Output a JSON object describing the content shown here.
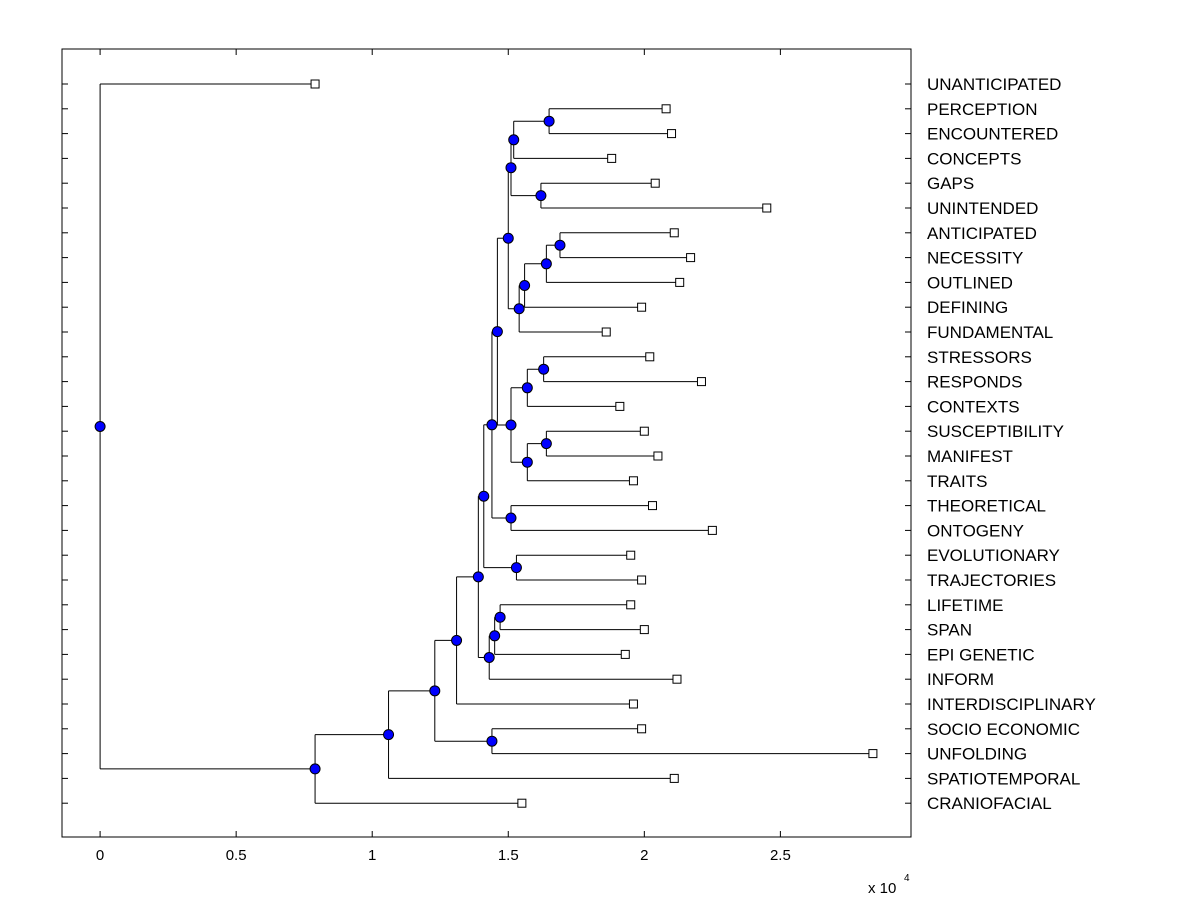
{
  "chart_data": {
    "type": "dendrogram",
    "title": "",
    "xlabel": "",
    "ylabel": "",
    "x_multiplier": "x 10",
    "x_exponent": "4",
    "xlim": [
      -0.14,
      2.98
    ],
    "xticks": [
      0,
      0.5,
      1,
      1.5,
      2,
      2.5
    ],
    "xtick_labels": [
      "0",
      "0.5",
      "1",
      "1.5",
      "2",
      "2.5"
    ],
    "colors": {
      "node_fill": "#0000ff",
      "line": "#000000",
      "leaf_fill": "#ffffff"
    },
    "leaves": [
      {
        "label": "UNANTICIPATED",
        "value": 0.79
      },
      {
        "label": "PERCEPTION",
        "value": 2.08
      },
      {
        "label": "ENCOUNTERED",
        "value": 2.1
      },
      {
        "label": "CONCEPTS",
        "value": 1.88
      },
      {
        "label": "GAPS",
        "value": 2.04
      },
      {
        "label": "UNINTENDED",
        "value": 2.45
      },
      {
        "label": "ANTICIPATED",
        "value": 2.11
      },
      {
        "label": "NECESSITY",
        "value": 2.17
      },
      {
        "label": "OUTLINED",
        "value": 2.13
      },
      {
        "label": "DEFINING",
        "value": 1.99
      },
      {
        "label": "FUNDAMENTAL",
        "value": 1.86
      },
      {
        "label": "STRESSORS",
        "value": 2.02
      },
      {
        "label": "RESPONDS",
        "value": 2.21
      },
      {
        "label": "CONTEXTS",
        "value": 1.91
      },
      {
        "label": "SUSCEPTIBILITY",
        "value": 2.0
      },
      {
        "label": "MANIFEST",
        "value": 2.05
      },
      {
        "label": "TRAITS",
        "value": 1.96
      },
      {
        "label": "THEORETICAL",
        "value": 2.03
      },
      {
        "label": "ONTOGENY",
        "value": 2.25
      },
      {
        "label": "EVOLUTIONARY",
        "value": 1.95
      },
      {
        "label": "TRAJECTORIES",
        "value": 1.99
      },
      {
        "label": "LIFETIME",
        "value": 1.95
      },
      {
        "label": "SPAN",
        "value": 2.0
      },
      {
        "label": "EPI GENETIC",
        "value": 1.93
      },
      {
        "label": "INFORM",
        "value": 2.12
      },
      {
        "label": "INTERDISCIPLINARY",
        "value": 1.96
      },
      {
        "label": "SOCIO ECONOMIC",
        "value": 1.99
      },
      {
        "label": "UNFOLDING",
        "value": 2.84
      },
      {
        "label": "SPATIOTEMPORAL",
        "value": 2.11
      },
      {
        "label": "CRANIOFACIAL",
        "value": 1.55
      }
    ],
    "tree": {
      "v": 0,
      "c": [
        {
          "leaf": 0
        },
        {
          "v": 0.79,
          "c": [
            {
              "v": 1.06,
              "c": [
                {
                  "v": 1.23,
                  "c": [
                    {
                      "v": 1.31,
                      "c": [
                        {
                          "v": 1.39,
                          "c": [
                            {
                              "v": 1.41,
                              "c": [
                                {
                                  "v": 1.44,
                                  "c": [
                                    {
                                      "v": 1.46,
                                      "c": [
                                        {
                                          "v": 1.5,
                                          "c": [
                                            {
                                              "v": 1.51,
                                              "c": [
                                                {
                                                  "v": 1.52,
                                                  "c": [
                                                    {
                                                      "v": 1.65,
                                                      "c": [
                                                        {
                                                          "leaf": 1
                                                        },
                                                        {
                                                          "leaf": 2
                                                        }
                                                      ]
                                                    },
                                                    {
                                                      "leaf": 3
                                                    }
                                                  ]
                                                },
                                                {
                                                  "v": 1.62,
                                                  "c": [
                                                    {
                                                      "leaf": 4
                                                    },
                                                    {
                                                      "leaf": 5
                                                    }
                                                  ]
                                                }
                                              ]
                                            },
                                            {
                                              "v": 1.54,
                                              "c": [
                                                {
                                                  "v": 1.56,
                                                  "c": [
                                                    {
                                                      "v": 1.64,
                                                      "c": [
                                                        {
                                                          "v": 1.69,
                                                          "c": [
                                                            {
                                                              "leaf": 6
                                                            },
                                                            {
                                                              "leaf": 7
                                                            }
                                                          ]
                                                        },
                                                        {
                                                          "leaf": 8
                                                        }
                                                      ]
                                                    },
                                                    {
                                                      "leaf": 9
                                                    }
                                                  ]
                                                },
                                                {
                                                  "leaf": 10
                                                }
                                              ]
                                            }
                                          ]
                                        },
                                        {
                                          "v": 1.51,
                                          "c": [
                                            {
                                              "v": 1.57,
                                              "c": [
                                                {
                                                  "v": 1.63,
                                                  "c": [
                                                    {
                                                      "leaf": 11
                                                    },
                                                    {
                                                      "leaf": 12
                                                    }
                                                  ]
                                                },
                                                {
                                                  "leaf": 13
                                                }
                                              ]
                                            },
                                            {
                                              "v": 1.57,
                                              "c": [
                                                {
                                                  "v": 1.64,
                                                  "c": [
                                                    {
                                                      "leaf": 14
                                                    },
                                                    {
                                                      "leaf": 15
                                                    }
                                                  ]
                                                },
                                                {
                                                  "leaf": 16
                                                }
                                              ]
                                            }
                                          ]
                                        }
                                      ]
                                    },
                                    {
                                      "v": 1.51,
                                      "c": [
                                        {
                                          "leaf": 17
                                        },
                                        {
                                          "leaf": 18
                                        }
                                      ]
                                    }
                                  ]
                                },
                                {
                                  "v": 1.53,
                                  "c": [
                                    {
                                      "leaf": 19
                                    },
                                    {
                                      "leaf": 20
                                    }
                                  ]
                                }
                              ]
                            },
                            {
                              "v": 1.43,
                              "c": [
                                {
                                  "v": 1.45,
                                  "c": [
                                    {
                                      "v": 1.47,
                                      "c": [
                                        {
                                          "leaf": 21
                                        },
                                        {
                                          "leaf": 22
                                        }
                                      ]
                                    },
                                    {
                                      "leaf": 23
                                    }
                                  ]
                                },
                                {
                                  "leaf": 24
                                }
                              ]
                            }
                          ]
                        },
                        {
                          "leaf": 25
                        }
                      ]
                    },
                    {
                      "v": 1.44,
                      "c": [
                        {
                          "leaf": 26
                        },
                        {
                          "leaf": 27
                        }
                      ]
                    }
                  ]
                },
                {
                  "leaf": 28
                }
              ]
            },
            {
              "leaf": 29
            }
          ]
        }
      ]
    }
  }
}
